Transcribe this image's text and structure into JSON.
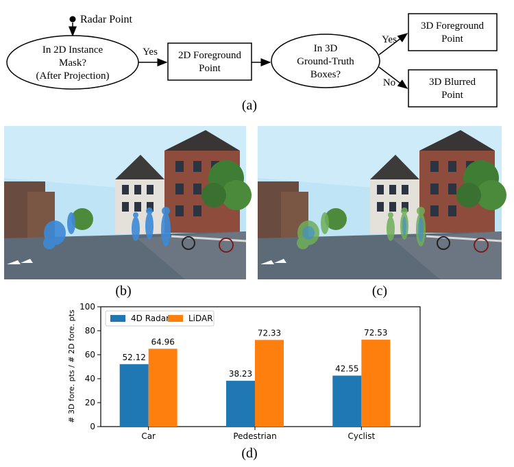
{
  "flow": {
    "start_label": "Radar Point",
    "decision1": [
      "In 2D Instance",
      "Mask?",
      "(After Projection)"
    ],
    "yes1": "Yes",
    "box1": [
      "2D Foreground",
      "Point"
    ],
    "decision2": [
      "In 3D",
      "Ground-Truth",
      "Boxes?"
    ],
    "yes2": "Yes",
    "no2": "No",
    "box_yes": [
      "3D Foreground",
      "Point"
    ],
    "box_no": [
      "3D Blurred",
      "Point"
    ]
  },
  "captions": {
    "a": "(a)",
    "b": "(b)",
    "c": "(c)",
    "d": "(d)"
  },
  "colors": {
    "radar": "#1f77b4",
    "lidar": "#ff7f0e",
    "sky": "#bfe4f5",
    "road": "#5d6b78"
  },
  "chart_data": {
    "type": "bar",
    "categories": [
      "Car",
      "Pedestrian",
      "Cyclist"
    ],
    "series": [
      {
        "name": "4D Radar",
        "values": [
          52.12,
          38.23,
          42.55
        ]
      },
      {
        "name": "LiDAR",
        "values": [
          64.96,
          72.33,
          72.53
        ]
      }
    ],
    "ylabel": "# 3D fore. pts / # 2D fore. pts",
    "xlabel": "",
    "ylim": [
      0,
      100
    ],
    "yticks": [
      0,
      20,
      40,
      60,
      80,
      100
    ],
    "legend": "top-left",
    "grid": false
  }
}
